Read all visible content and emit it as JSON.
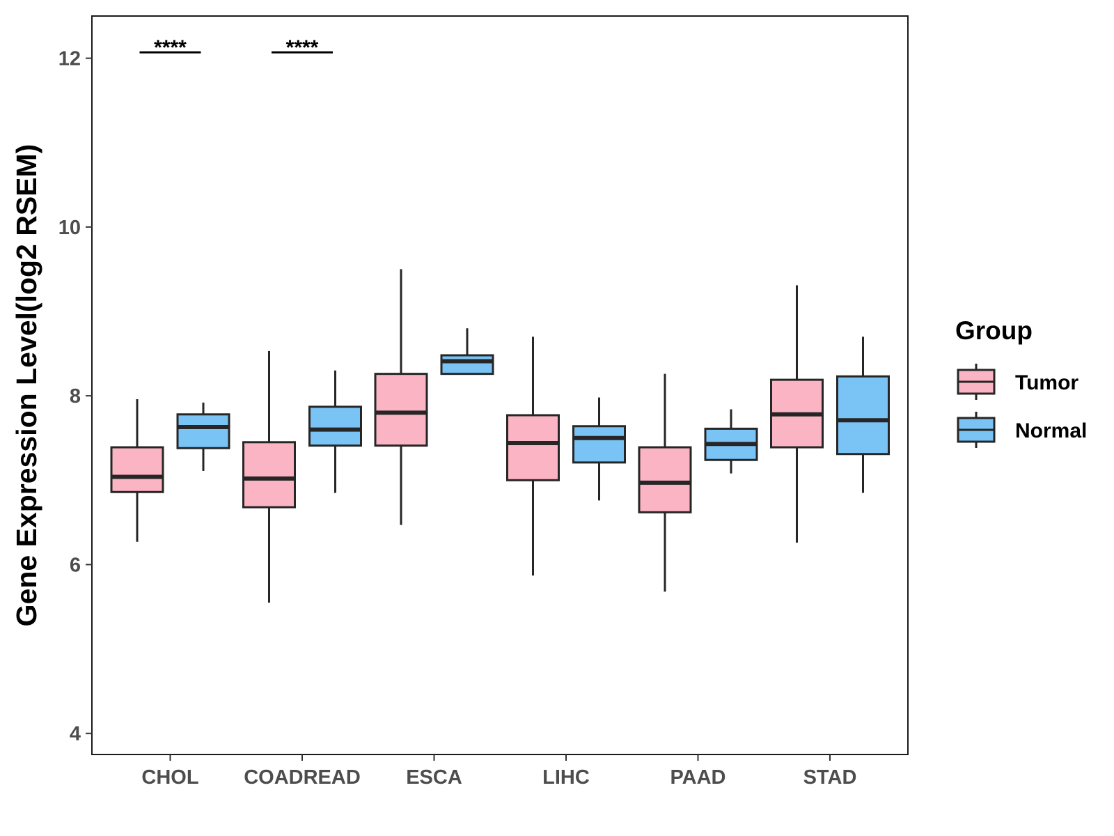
{
  "chart_data": {
    "type": "boxplot",
    "ylabel": "Gene Expression Level(log2 RSEM)",
    "xlabel": "",
    "ylim": [
      3.75,
      12.5
    ],
    "yticks": [
      4,
      6,
      8,
      10,
      12
    ],
    "grid": false,
    "legend": {
      "title": "Group",
      "placement": "right",
      "entries": [
        "Tumor",
        "Normal"
      ]
    },
    "categories": [
      "CHOL",
      "COADREAD",
      "ESCA",
      "LIHC",
      "PAAD",
      "STAD"
    ],
    "series": [
      {
        "name": "Tumor",
        "color": "#fbb4c3",
        "boxes": [
          {
            "whisker_low": 6.27,
            "q1": 6.86,
            "median": 7.04,
            "q3": 7.39,
            "whisker_high": 7.96
          },
          {
            "whisker_low": 5.55,
            "q1": 6.68,
            "median": 7.02,
            "q3": 7.45,
            "whisker_high": 8.53
          },
          {
            "whisker_low": 6.47,
            "q1": 7.41,
            "median": 7.8,
            "q3": 8.26,
            "whisker_high": 9.5
          },
          {
            "whisker_low": 5.87,
            "q1": 7.0,
            "median": 7.44,
            "q3": 7.77,
            "whisker_high": 8.7
          },
          {
            "whisker_low": 5.68,
            "q1": 6.62,
            "median": 6.97,
            "q3": 7.39,
            "whisker_high": 8.26
          },
          {
            "whisker_low": 6.26,
            "q1": 7.39,
            "median": 7.78,
            "q3": 8.19,
            "whisker_high": 9.31
          }
        ]
      },
      {
        "name": "Normal",
        "color": "#7ac3f5",
        "boxes": [
          {
            "whisker_low": 7.11,
            "q1": 7.38,
            "median": 7.63,
            "q3": 7.78,
            "whisker_high": 7.92
          },
          {
            "whisker_low": 6.85,
            "q1": 7.41,
            "median": 7.6,
            "q3": 7.87,
            "whisker_high": 8.3
          },
          {
            "whisker_low": 8.26,
            "q1": 8.26,
            "median": 8.41,
            "q3": 8.48,
            "whisker_high": 8.8
          },
          {
            "whisker_low": 6.76,
            "q1": 7.21,
            "median": 7.5,
            "q3": 7.64,
            "whisker_high": 7.98
          },
          {
            "whisker_low": 7.08,
            "q1": 7.24,
            "median": 7.43,
            "q3": 7.61,
            "whisker_high": 7.84
          },
          {
            "whisker_low": 6.85,
            "q1": 7.31,
            "median": 7.71,
            "q3": 8.23,
            "whisker_high": 8.7
          }
        ]
      }
    ],
    "annotations": [
      {
        "category": "CHOL",
        "label": "****",
        "y": 12.07
      },
      {
        "category": "COADREAD",
        "label": "****",
        "y": 12.07
      }
    ]
  }
}
